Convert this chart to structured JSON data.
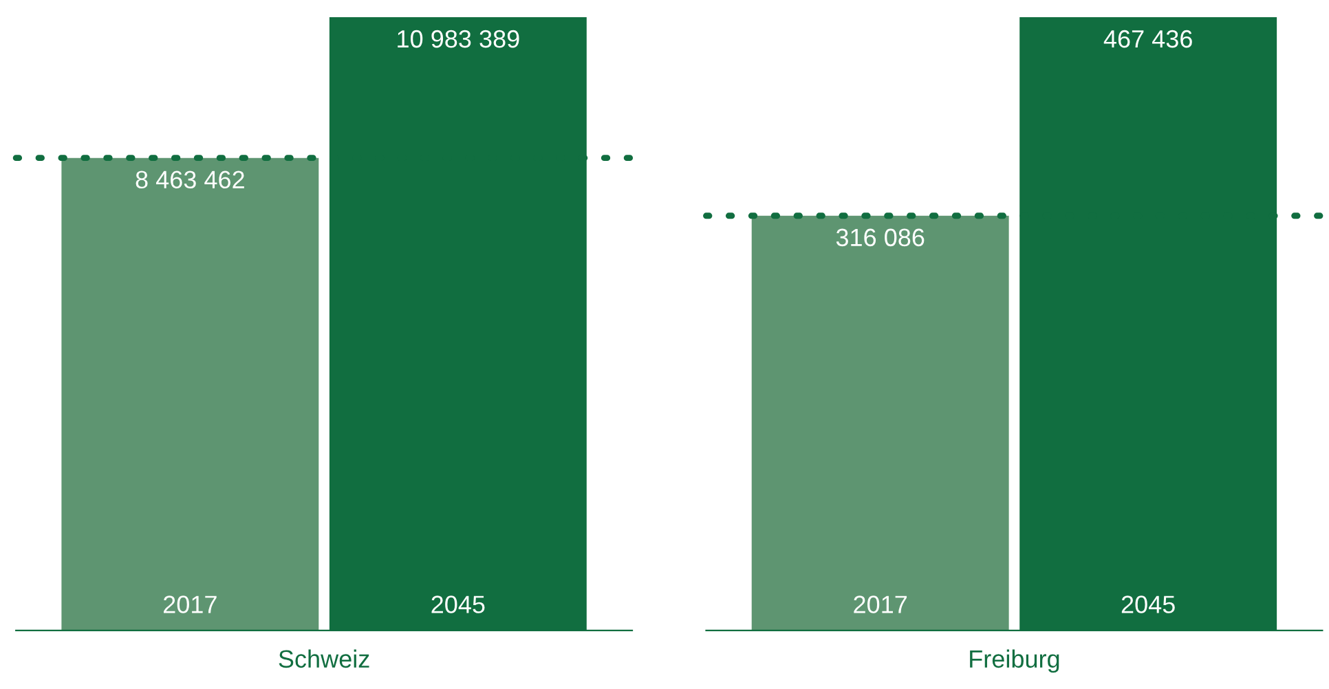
{
  "chart_data": [
    {
      "type": "bar",
      "xlabel": "Schweiz",
      "categories": [
        "2017",
        "2045"
      ],
      "colors": [
        "#5e9571",
        "#116e40"
      ],
      "values": [
        8463462,
        10983389
      ],
      "value_labels": [
        "8 463 462",
        "10 983 389"
      ],
      "ref_lines": [
        {
          "axis": "y",
          "value": 8463462,
          "color": "#116e40",
          "line_style": "dotted"
        }
      ]
    },
    {
      "type": "bar",
      "xlabel": "Freiburg",
      "categories": [
        "2017",
        "2045"
      ],
      "colors": [
        "#5e9571",
        "#116e40"
      ],
      "values": [
        316086,
        467436
      ],
      "value_labels": [
        "316 086",
        "467 436"
      ],
      "ref_lines": [
        {
          "axis": "y",
          "value": 316086,
          "color": "#116e40",
          "line_style": "dotted"
        }
      ]
    }
  ]
}
